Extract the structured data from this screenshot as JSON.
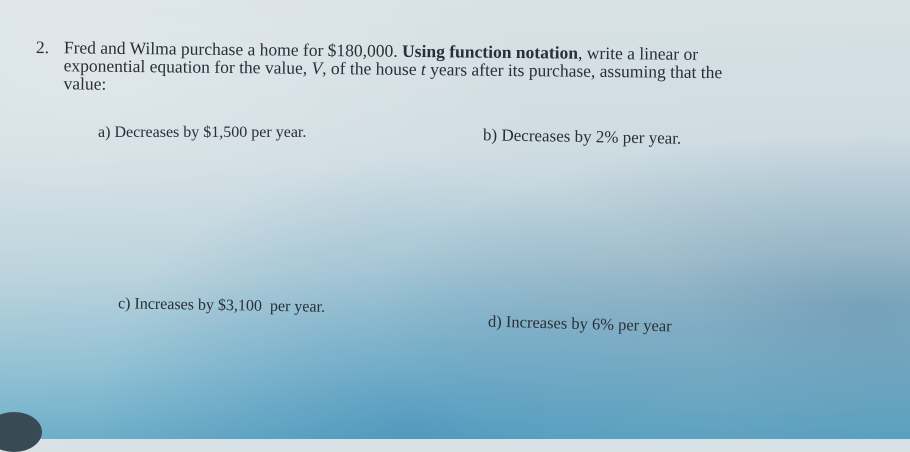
{
  "question": {
    "number": "2.",
    "line1_a": "Fred and Wilma purchase a home for $180,000. ",
    "line1_bold": "Using function notation",
    "line1_b": ", write a linear or",
    "line2_a": "exponential equation for the value, ",
    "line2_var_v": "V",
    "line2_b": ", of the house ",
    "line2_var_t": "t",
    "line2_c": " years after its purchase, assuming that the",
    "line3": "value:"
  },
  "parts": [
    {
      "label": "a)",
      "text": "Decreases by $1,500 per year."
    },
    {
      "label": "b)",
      "text": "Decreases by 2% per year."
    },
    {
      "label": "c)",
      "text": "Increases by $3,100  per year."
    },
    {
      "label": "d)",
      "text": "Increases by 6% per year"
    }
  ]
}
